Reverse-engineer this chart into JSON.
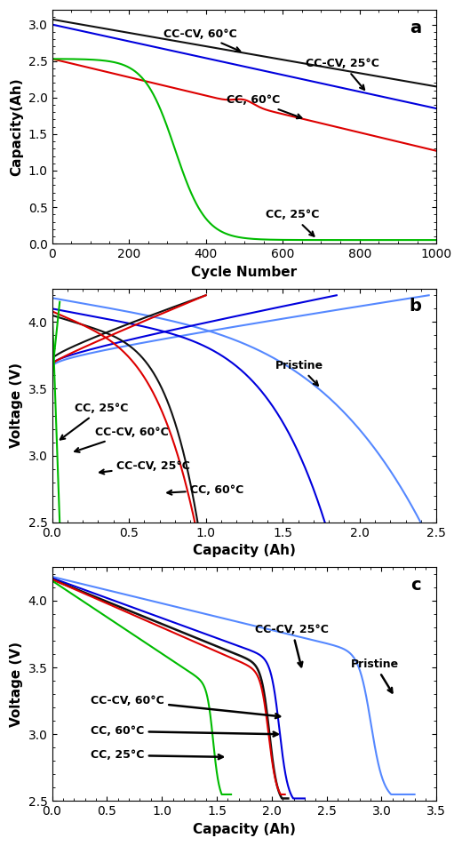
{
  "colors": {
    "pristine": "#5588ff",
    "cc_cv_25": "#0000dd",
    "cc_cv_60": "#111111",
    "cc_60": "#dd0000",
    "cc_25": "#00bb00"
  },
  "panel_a": {
    "xlabel": "Cycle Number",
    "ylabel": "Capacity(Ah)"
  },
  "panel_b": {
    "xlabel": "Capacity (Ah)",
    "ylabel": "Voltage (V)"
  },
  "panel_c": {
    "xlabel": "Capacity (Ah)",
    "ylabel": "Voltage (V)"
  }
}
